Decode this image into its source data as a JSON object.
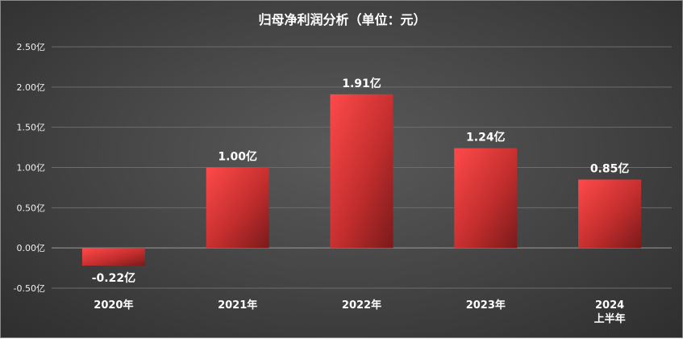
{
  "chart_data": {
    "type": "bar",
    "title": "归母净利润分析（单位：元）",
    "categories": [
      "2020年",
      "2021年",
      "2022年",
      "2023年",
      "2024\n上半年"
    ],
    "values": [
      -0.22,
      1.0,
      1.91,
      1.24,
      0.85
    ],
    "data_labels": [
      "-0.22亿",
      "1.00亿",
      "1.91亿",
      "1.24亿",
      "0.85亿"
    ],
    "y_ticks": [
      "2.50亿",
      "2.00亿",
      "1.50亿",
      "1.00亿",
      "0.50亿",
      "0.00亿",
      "-0.50亿"
    ],
    "y_tick_values": [
      2.5,
      2.0,
      1.5,
      1.0,
      0.5,
      0.0,
      -0.5
    ],
    "ylim": [
      -0.5,
      2.5
    ],
    "xlabel": "",
    "ylabel": "",
    "grid": true,
    "colors": {
      "bar_light": "#ff4a4a",
      "bar_dark": "#c42e2e",
      "bar_shade": "#7a1a1a",
      "background": "#474747"
    }
  }
}
